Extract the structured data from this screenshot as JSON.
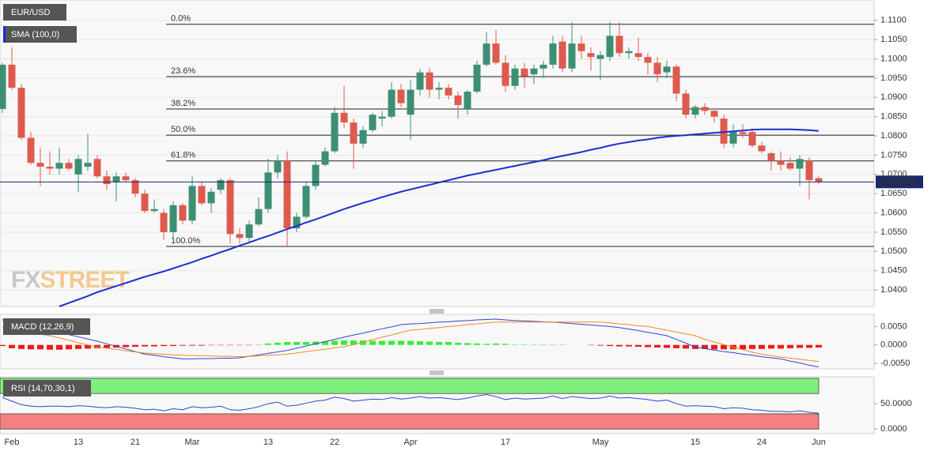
{
  "chart_data": [
    {
      "type": "candlestick",
      "name": "EUR/USD",
      "categories": [
        null,
        "Feb",
        null,
        null,
        null,
        null,
        null,
        null,
        "13",
        null,
        null,
        null,
        null,
        null,
        "21",
        null,
        null,
        null,
        null,
        null,
        "Mar",
        null,
        null,
        null,
        null,
        null,
        null,
        null,
        "13",
        null,
        null,
        null,
        null,
        null,
        null,
        "22",
        null,
        null,
        null,
        null,
        null,
        null,
        null,
        "Apr",
        null,
        null,
        null,
        null,
        null,
        null,
        null,
        null,
        null,
        "17",
        null,
        null,
        null,
        null,
        null,
        null,
        null,
        null,
        null,
        "May",
        null,
        null,
        null,
        null,
        null,
        null,
        null,
        null,
        null,
        "15",
        null,
        null,
        null,
        null,
        null,
        null,
        "24",
        null,
        null,
        null,
        null,
        null,
        "Jun"
      ],
      "open": [
        1.087,
        1.0985,
        1.0925,
        1.0795,
        1.073,
        1.072,
        1.0715,
        1.073,
        1.07,
        1.072,
        1.074,
        1.0695,
        1.068,
        1.0695,
        1.0685,
        1.065,
        1.0605,
        1.06,
        1.055,
        1.062,
        1.058,
        1.067,
        1.0625,
        1.066,
        1.0685,
        1.0545,
        1.0535,
        1.057,
        1.061,
        1.0705,
        1.0735,
        1.056,
        1.059,
        1.067,
        1.0725,
        1.076,
        1.086,
        1.0835,
        1.078,
        1.0815,
        1.0845,
        1.085,
        1.092,
        1.0855,
        1.092,
        1.0965,
        1.092,
        1.0925,
        1.0905,
        1.087,
        1.0915,
        1.0985,
        1.104,
        1.099,
        1.093,
        1.0975,
        1.096,
        1.0975,
        1.0985,
        1.1045,
        1.0975,
        1.104,
        1.1015,
        1.1,
        1.1005,
        1.106,
        1.1015,
        1.1015,
        1.1005,
        1.099,
        1.0965,
        1.098,
        1.091,
        1.0855,
        1.0875,
        1.0865,
        1.0845,
        1.078,
        1.081,
        1.081,
        1.0775,
        1.0755,
        1.0735,
        1.073,
        1.0715,
        1.0735,
        1.069
      ],
      "high": [
        1.099,
        1.103,
        1.0935,
        1.081,
        1.077,
        1.076,
        1.077,
        1.074,
        1.075,
        1.0805,
        1.075,
        1.071,
        1.0705,
        1.0705,
        1.069,
        1.066,
        1.0635,
        1.061,
        1.063,
        1.0625,
        1.0695,
        1.068,
        1.0665,
        1.069,
        1.069,
        1.056,
        1.058,
        1.064,
        1.074,
        1.075,
        1.076,
        1.06,
        1.068,
        1.0735,
        1.077,
        1.0875,
        1.093,
        1.0845,
        1.0825,
        1.086,
        1.0865,
        1.094,
        1.0935,
        1.0945,
        1.0975,
        1.0975,
        1.094,
        1.0935,
        1.0915,
        1.092,
        1.0995,
        1.107,
        1.1075,
        1.101,
        1.0985,
        1.099,
        1.0985,
        1.0995,
        1.106,
        1.106,
        1.1095,
        1.106,
        1.103,
        1.102,
        1.1095,
        1.1095,
        1.103,
        1.1055,
        1.1015,
        1.1005,
        1.0995,
        1.0985,
        1.092,
        1.088,
        1.0885,
        1.087,
        1.0855,
        1.083,
        1.083,
        1.082,
        1.0785,
        1.076,
        1.076,
        1.0745,
        1.075,
        1.0745,
        1.0695
      ],
      "low": [
        1.086,
        1.092,
        1.079,
        1.0725,
        1.067,
        1.07,
        1.07,
        1.071,
        1.0655,
        1.071,
        1.069,
        1.066,
        1.063,
        1.068,
        1.064,
        1.06,
        1.06,
        1.053,
        1.0535,
        1.057,
        1.057,
        1.062,
        1.06,
        1.065,
        1.052,
        1.052,
        1.0525,
        1.0565,
        1.06,
        1.069,
        1.0515,
        1.055,
        1.0585,
        1.066,
        1.072,
        1.0755,
        1.082,
        1.0715,
        1.077,
        1.081,
        1.0825,
        1.0845,
        1.0875,
        1.079,
        1.0905,
        1.09,
        1.0895,
        1.0895,
        1.0845,
        1.0855,
        1.091,
        1.098,
        1.0985,
        1.0915,
        1.092,
        1.0925,
        1.0935,
        1.095,
        1.0975,
        1.0965,
        1.0965,
        1.1,
        1.097,
        1.0945,
        1.0995,
        1.1005,
        1.1,
        1.0995,
        1.096,
        1.094,
        1.095,
        1.089,
        1.0845,
        1.0845,
        1.0855,
        1.0835,
        1.077,
        1.077,
        1.0795,
        1.077,
        1.0755,
        1.071,
        1.071,
        1.071,
        1.067,
        1.0635,
        1.0675
      ],
      "close": [
        1.0985,
        1.0925,
        1.0795,
        1.073,
        1.072,
        1.0715,
        1.073,
        1.0715,
        1.074,
        1.073,
        1.0695,
        1.0675,
        1.0695,
        1.0685,
        1.065,
        1.0605,
        1.061,
        1.055,
        1.062,
        1.058,
        1.067,
        1.0625,
        1.0655,
        1.0685,
        1.0545,
        1.0535,
        1.057,
        1.061,
        1.0705,
        1.0735,
        1.056,
        1.059,
        1.067,
        1.0725,
        1.076,
        1.086,
        1.0835,
        1.078,
        1.0815,
        1.0855,
        1.085,
        1.092,
        1.0885,
        1.092,
        1.0965,
        1.092,
        1.0925,
        1.0905,
        1.088,
        1.0915,
        1.0985,
        1.104,
        1.099,
        1.093,
        1.0975,
        1.0955,
        1.0975,
        1.0985,
        1.104,
        1.0975,
        1.104,
        1.102,
        1.1005,
        1.101,
        1.106,
        1.1015,
        1.102,
        1.1005,
        1.099,
        1.096,
        1.098,
        1.091,
        1.0855,
        1.0875,
        1.0865,
        1.085,
        1.078,
        1.081,
        1.0805,
        1.0775,
        1.076,
        1.0735,
        1.0725,
        1.0715,
        1.074,
        1.0685,
        1.06805
      ],
      "up_color": "#3d8f73",
      "down_color": "#de5a4e",
      "series": [
        {
          "name": "SMA (100,0)",
          "color": "#1b2fd0",
          "values": [
            null,
            null,
            null,
            null,
            null,
            null,
            1.0357,
            1.0366,
            1.0375,
            1.0384,
            1.0394,
            1.0402,
            1.041,
            1.0418,
            1.0426,
            1.0434,
            1.0441,
            1.0448,
            1.0456,
            1.0464,
            1.0472,
            1.0481,
            1.0489,
            1.0498,
            1.0506,
            1.0515,
            1.0523,
            1.0532,
            1.054,
            1.0549,
            1.0558,
            1.0566,
            1.0575,
            1.0583,
            1.0592,
            1.0601,
            1.061,
            1.0618,
            1.0626,
            1.0633,
            1.0641,
            1.0648,
            1.0655,
            1.0661,
            1.0667,
            1.0673,
            1.0679,
            1.0685,
            1.0691,
            1.0697,
            1.0702,
            1.0707,
            1.0712,
            1.0717,
            1.0722,
            1.0727,
            1.0732,
            1.0737,
            1.0743,
            1.0748,
            1.0753,
            1.0758,
            1.0764,
            1.0769,
            1.0775,
            1.078,
            1.0784,
            1.0788,
            1.0791,
            1.0795,
            1.0798,
            1.08,
            1.0802,
            1.0804,
            1.0806,
            1.0808,
            1.081,
            1.0812,
            1.0814,
            1.0816,
            1.0817,
            1.0817,
            1.0817,
            1.0817,
            1.0816,
            1.0815,
            1.0813
          ]
        }
      ],
      "levels": [
        {
          "value": 1.109,
          "label": "0.0%"
        },
        {
          "value": 1.0954,
          "label": "23.6%"
        },
        {
          "value": 1.087,
          "label": "38.2%"
        },
        {
          "value": 1.0802,
          "label": "50.0%"
        },
        {
          "value": 1.0735,
          "label": "61.8%"
        },
        {
          "value": 1.0513,
          "label": "100.0%"
        }
      ],
      "price_line": {
        "value": 1.06805,
        "label": "1.068050",
        "color": "#1c2a6b"
      },
      "ylim": [
        1.0357,
        1.1153
      ],
      "yticks": [
        {
          "value": 1.04,
          "label": "1.0400"
        },
        {
          "value": 1.045,
          "label": "1.0450"
        },
        {
          "value": 1.05,
          "label": "1.0500"
        },
        {
          "value": 1.055,
          "label": "1.0550"
        },
        {
          "value": 1.06,
          "label": "1.0600"
        },
        {
          "value": 1.065,
          "label": "1.0650"
        },
        {
          "value": 1.07,
          "label": "1.0700"
        },
        {
          "value": 1.075,
          "label": "1.0750"
        },
        {
          "value": 1.08,
          "label": "1.0800"
        },
        {
          "value": 1.085,
          "label": "1.0850"
        },
        {
          "value": 1.09,
          "label": "1.0900"
        },
        {
          "value": 1.095,
          "label": "1.0950"
        },
        {
          "value": 1.1,
          "label": "1.1000"
        },
        {
          "value": 1.105,
          "label": "1.1050"
        },
        {
          "value": 1.11,
          "label": "1.1100"
        }
      ],
      "watermark": {
        "prefix": "FX",
        "suffix": "STREET"
      },
      "grid": true
    },
    {
      "type": "macd",
      "title": "MACD (12,26,9)",
      "histogram": [
        -0.0003,
        -0.0009,
        -0.0011,
        -0.0012,
        -0.0012,
        -0.0013,
        -0.0013,
        -0.0012,
        -0.0011,
        -0.001,
        -0.0009,
        -0.0008,
        -0.0007,
        -0.0006,
        -0.0005,
        -0.0004,
        -0.0004,
        -0.0003,
        -0.0003,
        -0.0002,
        -0.0002,
        -0.0002,
        -0.0001,
        -0.0001,
        -0.0001,
        -0.0001,
        -0.0001,
        0.0001,
        0.0004,
        0.0006,
        0.0008,
        0.0008,
        0.0008,
        0.0009,
        0.001,
        0.0011,
        0.0012,
        0.0012,
        0.0012,
        0.0011,
        0.0011,
        0.0011,
        0.0011,
        0.0011,
        0.001,
        0.0009,
        0.0008,
        0.0008,
        0.0006,
        0.0005,
        0.0004,
        0.0003,
        0.0004,
        0.0003,
        0.0001,
        0.0001,
        0.0001,
        0.0001,
        0.0001,
        0.0001,
        0.0,
        0.0,
        -0.0001,
        -0.0002,
        -0.0003,
        -0.0004,
        -0.0004,
        -0.0005,
        -0.0006,
        -0.0007,
        -0.0008,
        -0.0009,
        -0.001,
        -0.0011,
        -0.0011,
        -0.0012,
        -0.0012,
        -0.0012,
        -0.0012,
        -0.0011,
        -0.0011,
        -0.001,
        -0.001,
        -0.0009,
        -0.0008,
        -0.0008,
        -0.0007
      ],
      "up_color": "#35ee35",
      "down_color": "#ee1a1a",
      "series": [
        {
          "color": "#2d47d6",
          "values": [
            0.0068,
            0.0063,
            0.0057,
            0.0052,
            0.0046,
            0.004,
            0.0034,
            0.0028,
            0.0022,
            0.0016,
            0.001,
            0.0003,
            -0.0004,
            -0.0011,
            -0.0018,
            -0.0025,
            -0.0028,
            -0.0032,
            -0.0035,
            -0.0038,
            -0.0038,
            -0.0037,
            -0.0037,
            -0.0036,
            -0.0036,
            -0.0035,
            -0.0031,
            -0.0027,
            -0.0023,
            -0.0019,
            -0.0015,
            -0.0009,
            -0.0003,
            0.0003,
            0.0009,
            0.0015,
            0.0021,
            0.0027,
            0.0032,
            0.0038,
            0.0044,
            0.0049,
            0.0055,
            0.0057,
            0.0058,
            0.006,
            0.0062,
            0.0063,
            0.0065,
            0.0066,
            0.0068,
            0.0069,
            0.007,
            0.0068,
            0.0066,
            0.0065,
            0.0064,
            0.0063,
            0.0062,
            0.006,
            0.0058,
            0.0056,
            0.0054,
            0.0052,
            0.005,
            0.0047,
            0.0043,
            0.0039,
            0.0034,
            0.003,
            0.0025,
            0.0015,
            0.0005,
            -0.0006,
            -0.001,
            -0.0014,
            -0.0018,
            -0.0021,
            -0.0025,
            -0.0028,
            -0.0032,
            -0.0035,
            -0.0038,
            -0.0044,
            -0.0049,
            -0.0055,
            -0.006
          ]
        },
        {
          "color": "#f08a24",
          "values": [
            0.0047,
            0.0043,
            0.0038,
            0.0034,
            0.0029,
            0.0025,
            0.0019,
            0.0013,
            0.0006,
            0.0,
            -0.0006,
            -0.0009,
            -0.0012,
            -0.0016,
            -0.0019,
            -0.0022,
            -0.0024,
            -0.0025,
            -0.0027,
            -0.0028,
            -0.0029,
            -0.0029,
            -0.003,
            -0.0031,
            -0.0031,
            -0.0032,
            -0.0031,
            -0.003,
            -0.0028,
            -0.0027,
            -0.0025,
            -0.0022,
            -0.0018,
            -0.0015,
            -0.0012,
            -0.0008,
            -0.0005,
            0.0001,
            0.0008,
            0.0014,
            0.0021,
            0.0027,
            0.0034,
            0.004,
            0.0042,
            0.0045,
            0.0047,
            0.005,
            0.0052,
            0.0055,
            0.0057,
            0.006,
            0.0062,
            0.0062,
            0.0062,
            0.0062,
            0.0062,
            0.0062,
            0.0062,
            0.0062,
            0.0062,
            0.0062,
            0.0062,
            0.0062,
            0.006,
            0.0057,
            0.0055,
            0.0052,
            0.005,
            0.0045,
            0.004,
            0.0035,
            0.003,
            0.0025,
            0.0015,
            0.0008,
            0.0001,
            -0.0006,
            -0.0013,
            -0.002,
            -0.0025,
            -0.0029,
            -0.0033,
            -0.0036,
            -0.0039,
            -0.0042,
            -0.0045
          ]
        }
      ],
      "ylim": [
        -0.0065,
        0.0083
      ],
      "yticks": [
        {
          "value": 0.005,
          "label": "0.0050"
        },
        {
          "value": 0,
          "label": "0.0000"
        },
        {
          "value": -0.005,
          "label": "-0.0050"
        }
      ]
    },
    {
      "type": "line",
      "title": "RSI (14,70,30,1)",
      "series": [
        {
          "color": "#3344cc",
          "values": [
            62,
            55,
            48,
            45,
            44,
            45,
            45,
            44,
            46,
            45,
            43,
            42,
            44,
            43,
            41,
            38,
            39,
            36,
            40,
            38,
            44,
            42,
            43,
            45,
            38,
            37,
            40,
            44,
            50,
            53,
            45,
            47,
            51,
            55,
            57,
            63,
            60,
            55,
            57,
            59,
            58,
            62,
            59,
            61,
            64,
            61,
            62,
            60,
            58,
            61,
            65,
            68,
            64,
            58,
            61,
            59,
            60,
            61,
            65,
            60,
            64,
            62,
            60,
            61,
            65,
            61,
            62,
            60,
            58,
            55,
            57,
            50,
            45,
            46,
            45,
            44,
            40,
            42,
            41,
            38,
            37,
            35,
            35,
            34,
            36,
            33,
            31
          ]
        }
      ],
      "bands": [
        {
          "from": 70,
          "to": 100,
          "color": "#7ef07e"
        },
        {
          "from": 0,
          "to": 30,
          "color": "#f67f7f"
        }
      ],
      "ylim": [
        -9,
        103
      ],
      "yticks": [
        {
          "value": 50,
          "label": "50.0000"
        },
        {
          "value": 0,
          "label": "0.0000"
        }
      ]
    }
  ]
}
